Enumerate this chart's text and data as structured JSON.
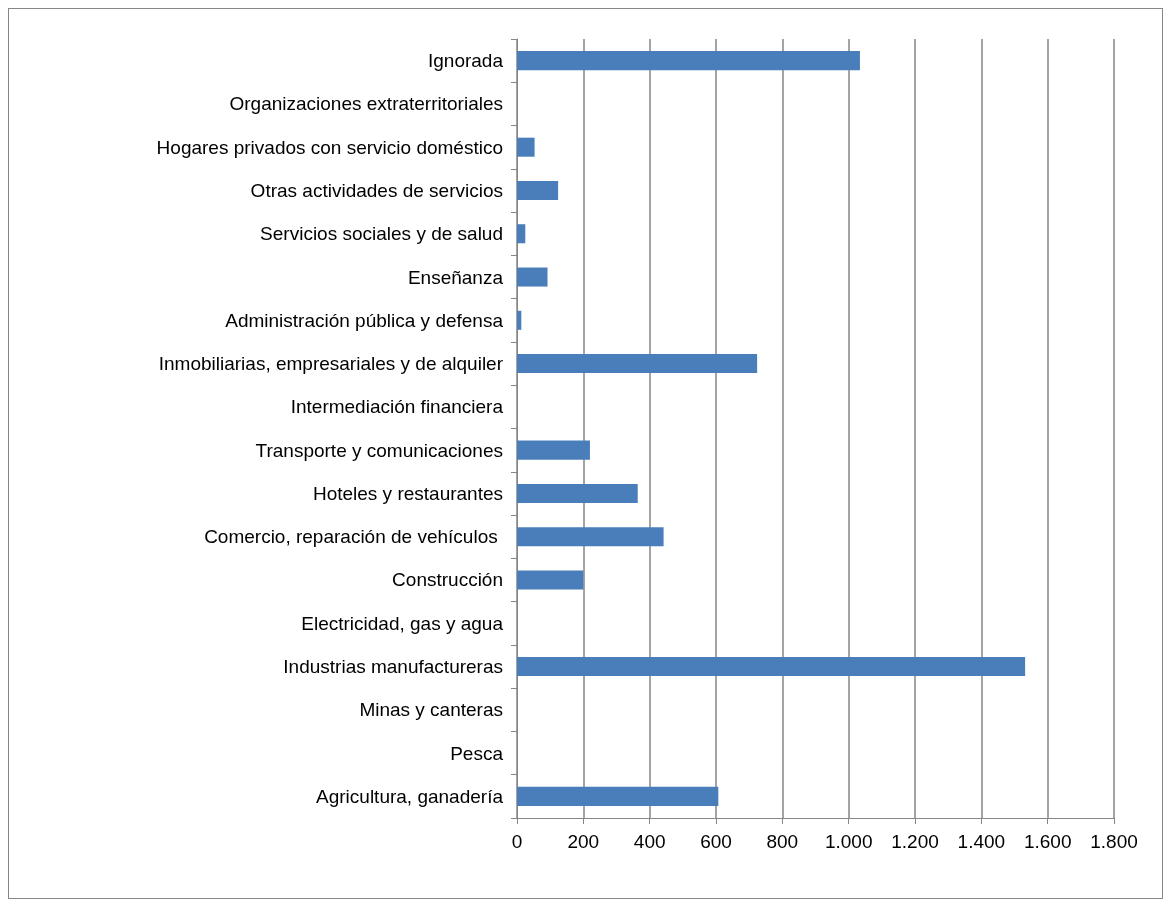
{
  "chart_data": {
    "type": "bar",
    "orientation": "horizontal",
    "categories": [
      "Ignorada",
      "Organizaciones extraterritoriales",
      "Hogares privados con servicio doméstico",
      "Otras actividades de servicios",
      "Servicios sociales y de salud",
      "Enseñanza",
      "Administración pública y defensa",
      "Inmobiliarias, empresariales y de alquiler",
      "Intermediación financiera",
      "Transporte y comunicaciones",
      "Hoteles y restaurantes",
      "Comercio, reparación de vehículos ",
      "Construcción",
      "Electricidad, gas y agua",
      "Industrias manufactureras",
      "Minas y canteras",
      "Pesca",
      "Agricultura, ganadería"
    ],
    "values": [
      1034,
      0,
      53,
      124,
      25,
      92,
      13,
      724,
      0,
      220,
      364,
      442,
      200,
      0,
      1532,
      0,
      0,
      607
    ],
    "color": "#4a7ebb",
    "xlim": [
      0,
      1800
    ],
    "xticks": [
      0,
      200,
      400,
      600,
      800,
      {
        "value": 1000,
        "label": "1.000"
      },
      {
        "value": 1200,
        "label": "1.200"
      },
      {
        "value": 1400,
        "label": "1.400"
      },
      {
        "value": 1600,
        "label": "1.600"
      },
      {
        "value": 1800,
        "label": "1.800"
      }
    ],
    "grid": "x"
  }
}
